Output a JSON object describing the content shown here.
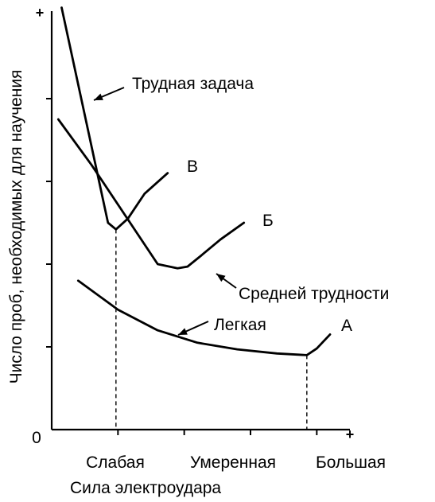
{
  "chart_data": {
    "type": "line",
    "title": "",
    "xlabel": "Сила электроудара",
    "ylabel": "Число проб, необходимых для научения",
    "origin_label": "0",
    "x_axis_end_label": "+",
    "y_axis_end_label": "+",
    "categories": [
      "Слабая",
      "Умеренная",
      "Большая"
    ],
    "xlim": [
      0,
      4.5
    ],
    "ylim": [
      0,
      5
    ],
    "grid": false,
    "legend": "none",
    "series": [
      {
        "name": "Трудная задача",
        "end_label": "В",
        "x": [
          0.15,
          0.85,
          0.97,
          1.15,
          1.4,
          1.75
        ],
        "y": [
          5.1,
          2.5,
          2.42,
          2.55,
          2.85,
          3.1
        ]
      },
      {
        "name": "Средней трудности",
        "end_label": "Б",
        "x": [
          0.1,
          0.6,
          1.1,
          1.6,
          1.9,
          2.05,
          2.25,
          2.55,
          2.9
        ],
        "y": [
          3.75,
          3.2,
          2.6,
          2.0,
          1.95,
          1.97,
          2.1,
          2.3,
          2.5
        ]
      },
      {
        "name": "Легкая",
        "end_label": "А",
        "x": [
          0.4,
          1.0,
          1.6,
          2.2,
          2.8,
          3.4,
          3.85,
          4.0,
          4.2
        ],
        "y": [
          1.8,
          1.45,
          1.2,
          1.05,
          0.97,
          0.92,
          0.9,
          0.98,
          1.15
        ]
      }
    ],
    "drop_lines_at_x": [
      0.97,
      3.85
    ]
  }
}
